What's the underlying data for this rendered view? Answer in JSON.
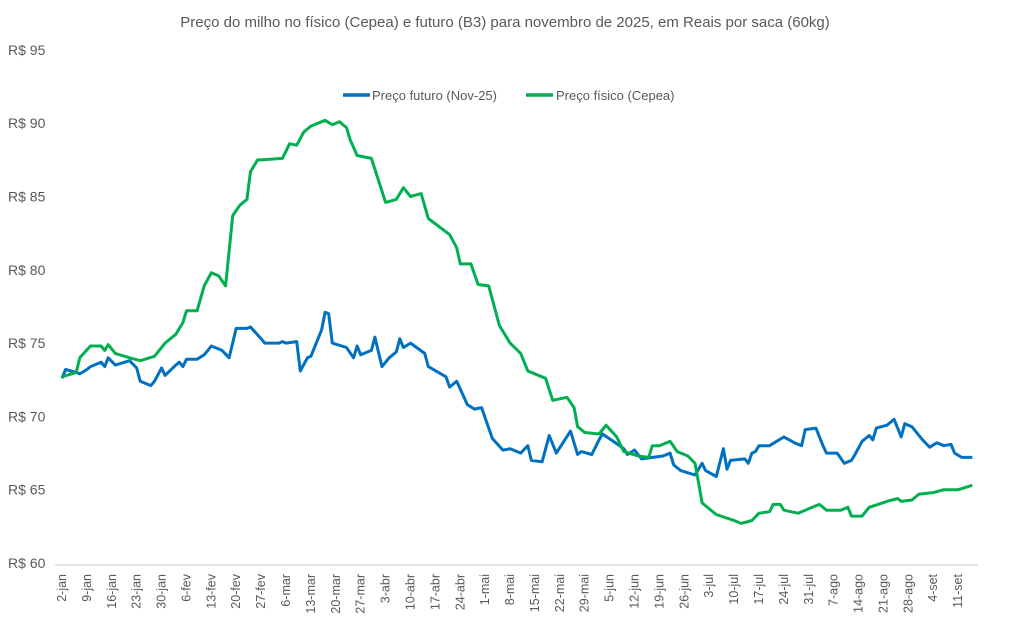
{
  "chart_data": {
    "type": "line",
    "title": "Preço do milho no físico (Cepea) e futuro (B3) para novembro de 2025, em Reais por saca (60kg)",
    "xlabel": "",
    "ylabel": "",
    "xlim": [
      "2025-01-02",
      "2025-09-16"
    ],
    "ylim": [
      60,
      95
    ],
    "yticks": [
      60,
      65,
      70,
      75,
      80,
      85,
      90,
      95
    ],
    "ytick_labels": [
      "R$ 60",
      "R$ 65",
      "R$ 70",
      "R$ 75",
      "R$ 80",
      "R$ 85",
      "R$ 90",
      "R$ 95"
    ],
    "xtick_dates": [
      "2025-01-02",
      "2025-01-09",
      "2025-01-16",
      "2025-01-23",
      "2025-01-30",
      "2025-02-06",
      "2025-02-13",
      "2025-02-20",
      "2025-02-27",
      "2025-03-06",
      "2025-03-13",
      "2025-03-20",
      "2025-03-27",
      "2025-04-03",
      "2025-04-10",
      "2025-04-17",
      "2025-04-24",
      "2025-05-01",
      "2025-05-08",
      "2025-05-15",
      "2025-05-22",
      "2025-05-29",
      "2025-06-05",
      "2025-06-12",
      "2025-06-19",
      "2025-06-26",
      "2025-07-03",
      "2025-07-10",
      "2025-07-17",
      "2025-07-24",
      "2025-07-31",
      "2025-08-07",
      "2025-08-14",
      "2025-08-21",
      "2025-08-28",
      "2025-09-04",
      "2025-09-11"
    ],
    "xtick_labels": [
      "2-jan",
      "9-jan",
      "16-jan",
      "23-jan",
      "30-jan",
      "6-fev",
      "13-fev",
      "20-fev",
      "27-fev",
      "6-mar",
      "13-mar",
      "20-mar",
      "27-mar",
      "3-abr",
      "10-abr",
      "17-abr",
      "24-abr",
      "1-mai",
      "8-mai",
      "15-mai",
      "22-mai",
      "29-mai",
      "5-jun",
      "12-jun",
      "19-jun",
      "26-jun",
      "3-jul",
      "10-jul",
      "17-jul",
      "24-jul",
      "31-jul",
      "7-ago",
      "14-ago",
      "21-ago",
      "28-ago",
      "4-set",
      "11-set"
    ],
    "grid": false,
    "legend_placement": "top-center",
    "series": [
      {
        "name": "Preço futuro (Nov-25)",
        "color": "#0070C0",
        "points": [
          [
            "2025-01-02",
            72.6
          ],
          [
            "2025-01-03",
            73.2
          ],
          [
            "2025-01-06",
            73.0
          ],
          [
            "2025-01-07",
            72.9
          ],
          [
            "2025-01-09",
            73.2
          ],
          [
            "2025-01-10",
            73.4
          ],
          [
            "2025-01-13",
            73.7
          ],
          [
            "2025-01-14",
            73.4
          ],
          [
            "2025-01-15",
            74.0
          ],
          [
            "2025-01-17",
            73.5
          ],
          [
            "2025-01-21",
            73.8
          ],
          [
            "2025-01-23",
            73.3
          ],
          [
            "2025-01-24",
            72.4
          ],
          [
            "2025-01-27",
            72.1
          ],
          [
            "2025-01-28",
            72.4
          ],
          [
            "2025-01-30",
            73.3
          ],
          [
            "2025-01-31",
            72.8
          ],
          [
            "2025-02-03",
            73.5
          ],
          [
            "2025-02-04",
            73.7
          ],
          [
            "2025-02-05",
            73.4
          ],
          [
            "2025-02-06",
            73.9
          ],
          [
            "2025-02-09",
            73.9
          ],
          [
            "2025-02-11",
            74.2
          ],
          [
            "2025-02-13",
            74.8
          ],
          [
            "2025-02-16",
            74.5
          ],
          [
            "2025-02-18",
            74.0
          ],
          [
            "2025-02-20",
            76.0
          ],
          [
            "2025-02-23",
            76.0
          ],
          [
            "2025-02-24",
            76.1
          ],
          [
            "2025-02-27",
            75.3
          ],
          [
            "2025-02-28",
            75.0
          ],
          [
            "2025-03-04",
            75.0
          ],
          [
            "2025-03-05",
            75.1
          ],
          [
            "2025-03-06",
            75.0
          ],
          [
            "2025-03-09",
            75.1
          ],
          [
            "2025-03-10",
            73.1
          ],
          [
            "2025-03-12",
            74.0
          ],
          [
            "2025-03-13",
            74.1
          ],
          [
            "2025-03-16",
            75.9
          ],
          [
            "2025-03-17",
            77.1
          ],
          [
            "2025-03-18",
            77.0
          ],
          [
            "2025-03-19",
            75.0
          ],
          [
            "2025-03-23",
            74.7
          ],
          [
            "2025-03-25",
            74.0
          ],
          [
            "2025-03-26",
            74.8
          ],
          [
            "2025-03-27",
            74.2
          ],
          [
            "2025-03-30",
            74.5
          ],
          [
            "2025-03-31",
            75.4
          ],
          [
            "2025-04-02",
            73.4
          ],
          [
            "2025-04-04",
            74.0
          ],
          [
            "2025-04-06",
            74.4
          ],
          [
            "2025-04-07",
            75.3
          ],
          [
            "2025-04-08",
            74.7
          ],
          [
            "2025-04-10",
            75.0
          ],
          [
            "2025-04-14",
            74.3
          ],
          [
            "2025-04-15",
            73.4
          ],
          [
            "2025-04-20",
            72.7
          ],
          [
            "2025-04-21",
            72.0
          ],
          [
            "2025-04-23",
            72.4
          ],
          [
            "2025-04-26",
            70.8
          ],
          [
            "2025-04-28",
            70.5
          ],
          [
            "2025-04-30",
            70.6
          ],
          [
            "2025-05-03",
            68.5
          ],
          [
            "2025-05-06",
            67.7
          ],
          [
            "2025-05-08",
            67.8
          ],
          [
            "2025-05-11",
            67.5
          ],
          [
            "2025-05-13",
            68.0
          ],
          [
            "2025-05-14",
            67.0
          ],
          [
            "2025-05-17",
            66.9
          ],
          [
            "2025-05-19",
            68.7
          ],
          [
            "2025-05-21",
            67.5
          ],
          [
            "2025-05-25",
            69.0
          ],
          [
            "2025-05-27",
            67.4
          ],
          [
            "2025-05-28",
            67.6
          ],
          [
            "2025-05-31",
            67.4
          ],
          [
            "2025-06-02",
            68.4
          ],
          [
            "2025-06-03",
            68.8
          ],
          [
            "2025-06-06",
            68.3
          ],
          [
            "2025-06-09",
            67.8
          ],
          [
            "2025-06-10",
            67.4
          ],
          [
            "2025-06-12",
            67.7
          ],
          [
            "2025-06-14",
            67.1
          ],
          [
            "2025-06-20",
            67.3
          ],
          [
            "2025-06-22",
            67.5
          ],
          [
            "2025-06-23",
            66.7
          ],
          [
            "2025-06-25",
            66.3
          ],
          [
            "2025-06-29",
            66.0
          ],
          [
            "2025-07-01",
            66.8
          ],
          [
            "2025-07-02",
            66.3
          ],
          [
            "2025-07-05",
            65.9
          ],
          [
            "2025-07-07",
            67.8
          ],
          [
            "2025-07-08",
            66.4
          ],
          [
            "2025-07-09",
            67.0
          ],
          [
            "2025-07-13",
            67.1
          ],
          [
            "2025-07-14",
            66.8
          ],
          [
            "2025-07-15",
            67.5
          ],
          [
            "2025-07-16",
            67.6
          ],
          [
            "2025-07-17",
            68.0
          ],
          [
            "2025-07-20",
            68.0
          ],
          [
            "2025-07-24",
            68.6
          ],
          [
            "2025-07-27",
            68.2
          ],
          [
            "2025-07-29",
            68.0
          ],
          [
            "2025-07-30",
            69.1
          ],
          [
            "2025-08-02",
            69.2
          ],
          [
            "2025-08-04",
            68.0
          ],
          [
            "2025-08-05",
            67.5
          ],
          [
            "2025-08-08",
            67.5
          ],
          [
            "2025-08-10",
            66.8
          ],
          [
            "2025-08-12",
            67.0
          ],
          [
            "2025-08-13",
            67.4
          ],
          [
            "2025-08-15",
            68.3
          ],
          [
            "2025-08-17",
            68.7
          ],
          [
            "2025-08-18",
            68.4
          ],
          [
            "2025-08-19",
            69.2
          ],
          [
            "2025-08-22",
            69.4
          ],
          [
            "2025-08-24",
            69.8
          ],
          [
            "2025-08-26",
            68.6
          ],
          [
            "2025-08-27",
            69.5
          ],
          [
            "2025-08-29",
            69.3
          ],
          [
            "2025-09-01",
            68.4
          ],
          [
            "2025-09-03",
            67.9
          ],
          [
            "2025-09-05",
            68.2
          ],
          [
            "2025-09-07",
            68.0
          ],
          [
            "2025-09-09",
            68.1
          ],
          [
            "2025-09-10",
            67.5
          ],
          [
            "2025-09-12",
            67.2
          ],
          [
            "2025-09-15",
            67.2
          ]
        ]
      },
      {
        "name": "Preço físico (Cepea)",
        "color": "#00B050",
        "points": [
          [
            "2025-01-02",
            72.7
          ],
          [
            "2025-01-06",
            73.0
          ],
          [
            "2025-01-07",
            74.0
          ],
          [
            "2025-01-10",
            74.8
          ],
          [
            "2025-01-13",
            74.8
          ],
          [
            "2025-01-14",
            74.5
          ],
          [
            "2025-01-15",
            74.9
          ],
          [
            "2025-01-17",
            74.3
          ],
          [
            "2025-01-21",
            74.0
          ],
          [
            "2025-01-24",
            73.8
          ],
          [
            "2025-01-28",
            74.1
          ],
          [
            "2025-01-31",
            75.0
          ],
          [
            "2025-02-03",
            75.6
          ],
          [
            "2025-02-05",
            76.4
          ],
          [
            "2025-02-06",
            77.2
          ],
          [
            "2025-02-09",
            77.2
          ],
          [
            "2025-02-11",
            78.9
          ],
          [
            "2025-02-13",
            79.8
          ],
          [
            "2025-02-15",
            79.6
          ],
          [
            "2025-02-17",
            78.9
          ],
          [
            "2025-02-19",
            83.7
          ],
          [
            "2025-02-21",
            84.4
          ],
          [
            "2025-02-23",
            84.8
          ],
          [
            "2025-02-24",
            86.7
          ],
          [
            "2025-02-26",
            87.5
          ],
          [
            "2025-02-27",
            87.5
          ],
          [
            "2025-03-05",
            87.6
          ],
          [
            "2025-03-07",
            88.6
          ],
          [
            "2025-03-09",
            88.5
          ],
          [
            "2025-03-11",
            89.4
          ],
          [
            "2025-03-13",
            89.8
          ],
          [
            "2025-03-17",
            90.2
          ],
          [
            "2025-03-19",
            89.9
          ],
          [
            "2025-03-21",
            90.1
          ],
          [
            "2025-03-23",
            89.7
          ],
          [
            "2025-03-24",
            88.9
          ],
          [
            "2025-03-26",
            87.8
          ],
          [
            "2025-03-30",
            87.6
          ],
          [
            "2025-04-01",
            86.1
          ],
          [
            "2025-04-03",
            84.6
          ],
          [
            "2025-04-06",
            84.8
          ],
          [
            "2025-04-08",
            85.6
          ],
          [
            "2025-04-10",
            85.0
          ],
          [
            "2025-04-13",
            85.2
          ],
          [
            "2025-04-15",
            83.5
          ],
          [
            "2025-04-21",
            82.4
          ],
          [
            "2025-04-23",
            81.5
          ],
          [
            "2025-04-24",
            80.4
          ],
          [
            "2025-04-27",
            80.4
          ],
          [
            "2025-04-29",
            79.0
          ],
          [
            "2025-05-02",
            78.9
          ],
          [
            "2025-05-05",
            76.2
          ],
          [
            "2025-05-08",
            75.0
          ],
          [
            "2025-05-11",
            74.3
          ],
          [
            "2025-05-13",
            73.1
          ],
          [
            "2025-05-18",
            72.6
          ],
          [
            "2025-05-20",
            71.1
          ],
          [
            "2025-05-24",
            71.3
          ],
          [
            "2025-05-26",
            70.6
          ],
          [
            "2025-05-27",
            69.3
          ],
          [
            "2025-05-29",
            68.9
          ],
          [
            "2025-06-02",
            68.8
          ],
          [
            "2025-06-04",
            69.4
          ],
          [
            "2025-06-07",
            68.6
          ],
          [
            "2025-06-09",
            67.6
          ],
          [
            "2025-06-13",
            67.3
          ],
          [
            "2025-06-16",
            67.2
          ],
          [
            "2025-06-17",
            68.0
          ],
          [
            "2025-06-19",
            68.0
          ],
          [
            "2025-06-22",
            68.3
          ],
          [
            "2025-06-24",
            67.6
          ],
          [
            "2025-06-27",
            67.3
          ],
          [
            "2025-06-29",
            66.8
          ],
          [
            "2025-06-30",
            65.5
          ],
          [
            "2025-07-01",
            64.1
          ],
          [
            "2025-07-05",
            63.3
          ],
          [
            "2025-07-10",
            62.9
          ],
          [
            "2025-07-12",
            62.7
          ],
          [
            "2025-07-15",
            62.9
          ],
          [
            "2025-07-17",
            63.4
          ],
          [
            "2025-07-20",
            63.5
          ],
          [
            "2025-07-21",
            64.0
          ],
          [
            "2025-07-23",
            64.0
          ],
          [
            "2025-07-24",
            63.6
          ],
          [
            "2025-07-28",
            63.4
          ],
          [
            "2025-08-01",
            63.8
          ],
          [
            "2025-08-03",
            64.0
          ],
          [
            "2025-08-05",
            63.6
          ],
          [
            "2025-08-09",
            63.6
          ],
          [
            "2025-08-11",
            63.8
          ],
          [
            "2025-08-12",
            63.2
          ],
          [
            "2025-08-15",
            63.2
          ],
          [
            "2025-08-17",
            63.8
          ],
          [
            "2025-08-22",
            64.2
          ],
          [
            "2025-08-25",
            64.4
          ],
          [
            "2025-08-26",
            64.2
          ],
          [
            "2025-08-29",
            64.3
          ],
          [
            "2025-08-31",
            64.7
          ],
          [
            "2025-09-04",
            64.8
          ],
          [
            "2025-09-07",
            65.0
          ],
          [
            "2025-09-11",
            65.0
          ],
          [
            "2025-09-15",
            65.3
          ]
        ]
      }
    ]
  }
}
